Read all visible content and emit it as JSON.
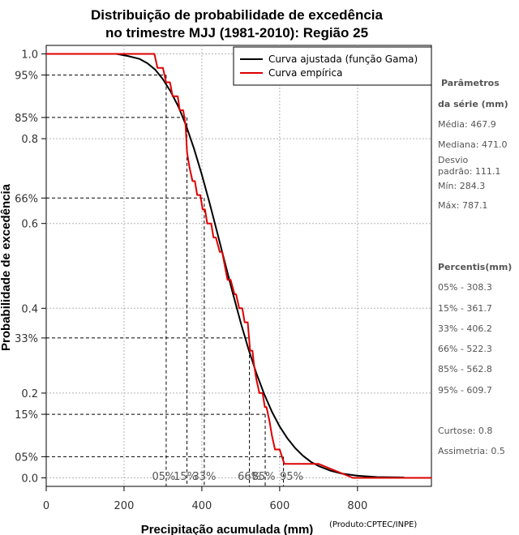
{
  "chart_data": {
    "type": "line",
    "title_line1": "Distribuição de probabilidade de excedência",
    "title_line2": "no trimestre MJJ (1981-2010): Região 25",
    "xlabel": "Precipitação acumulada (mm)",
    "ylabel": "Probabilidade de excedência",
    "credit": "(Produto:CPTEC/INPE)",
    "xlim": [
      0,
      990
    ],
    "ylim": [
      -0.02,
      1.02
    ],
    "x_ticks": [
      0,
      200,
      400,
      600,
      800
    ],
    "x_tick_labels": [
      "0",
      "200",
      "400",
      "600",
      "800"
    ],
    "y_ticks": [
      {
        "value": 1.0,
        "label": "1.0"
      },
      {
        "value": 0.95,
        "label": "95%"
      },
      {
        "value": 0.85,
        "label": "85%"
      },
      {
        "value": 0.8,
        "label": "0.8"
      },
      {
        "value": 0.66,
        "label": "66%"
      },
      {
        "value": 0.6,
        "label": "0.6"
      },
      {
        "value": 0.4,
        "label": "0.4"
      },
      {
        "value": 0.33,
        "label": "33%"
      },
      {
        "value": 0.2,
        "label": "0.2"
      },
      {
        "value": 0.15,
        "label": "15%"
      },
      {
        "value": 0.05,
        "label": "05%"
      },
      {
        "value": 0.0,
        "label": "0.0"
      }
    ],
    "grid": true,
    "legend_position": "top-right",
    "series": [
      {
        "name": "Curva ajustada (função Gama)",
        "color": "#000000",
        "x": [
          180,
          210,
          240,
          260,
          280,
          300,
          320,
          340,
          360,
          380,
          400,
          420,
          440,
          460,
          480,
          500,
          520,
          540,
          560,
          580,
          600,
          620,
          640,
          660,
          680,
          700,
          730,
          760,
          800,
          850,
          920
        ],
        "y": [
          1.0,
          0.995,
          0.988,
          0.978,
          0.963,
          0.94,
          0.911,
          0.875,
          0.83,
          0.776,
          0.715,
          0.648,
          0.577,
          0.505,
          0.434,
          0.366,
          0.303,
          0.247,
          0.198,
          0.156,
          0.121,
          0.093,
          0.07,
          0.052,
          0.038,
          0.028,
          0.017,
          0.01,
          0.005,
          0.002,
          0.001
        ]
      },
      {
        "name": "Curva empírica",
        "color": "#dd0000",
        "x": [
          0,
          278,
          286,
          300,
          308,
          318,
          325,
          338,
          343,
          352,
          358,
          362,
          368,
          376,
          382,
          388,
          396,
          402,
          408,
          414,
          424,
          430,
          436,
          446,
          452,
          466,
          474,
          484,
          488,
          496,
          504,
          510,
          518,
          524,
          530,
          534,
          540,
          548,
          556,
          562,
          566,
          574,
          580,
          588,
          600,
          612,
          620,
          640,
          660,
          700,
          788,
          990
        ],
        "y": [
          1.0,
          1.0,
          0.967,
          0.967,
          0.933,
          0.933,
          0.9,
          0.9,
          0.867,
          0.867,
          0.833,
          0.767,
          0.733,
          0.7,
          0.7,
          0.667,
          0.667,
          0.633,
          0.633,
          0.6,
          0.6,
          0.567,
          0.567,
          0.533,
          0.533,
          0.467,
          0.467,
          0.433,
          0.433,
          0.4,
          0.4,
          0.367,
          0.367,
          0.3,
          0.3,
          0.267,
          0.233,
          0.2,
          0.2,
          0.167,
          0.167,
          0.133,
          0.1,
          0.067,
          0.067,
          0.033,
          0.033,
          0.033,
          0.033,
          0.033,
          0.0,
          0.0
        ]
      }
    ],
    "percentile_markers": [
      {
        "label": "05%",
        "x": 308.3,
        "p": 0.95
      },
      {
        "label": "15%",
        "x": 361.7,
        "p": 0.85
      },
      {
        "label": "33%",
        "x": 406.2,
        "p": 0.66
      },
      {
        "label": "66%",
        "x": 522.3,
        "p": 0.33
      },
      {
        "label": "85%",
        "x": 562.8,
        "p": 0.15
      },
      {
        "label": "95%",
        "x": 609.7,
        "p": 0.05
      }
    ]
  },
  "sidebar": {
    "params_title_1": "Parâmetros",
    "params_title_2": "da série (mm)",
    "media": "Média: 467.9",
    "mediana": "Mediana: 471.0",
    "desvio_1": "Desvio",
    "desvio_2": "padrão: 111.1",
    "min": "Mín: 284.3",
    "max": "Máx: 787.1",
    "percentis_title": "Percentis(mm)",
    "percentis": [
      "05% - 308.3",
      "15% - 361.7",
      "33% - 406.2",
      "66% - 522.3",
      "85% - 562.8",
      "95% - 609.7"
    ],
    "curtose": "Curtose: 0.8",
    "assimetria": "Assimetria: 0.5"
  }
}
